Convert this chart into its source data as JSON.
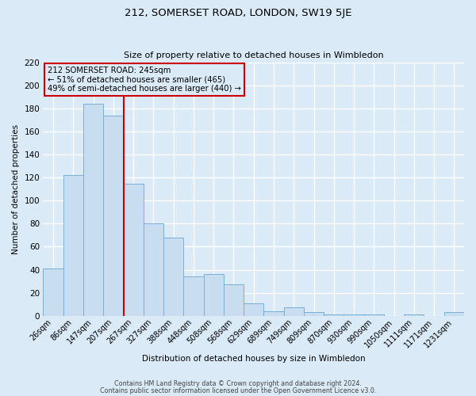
{
  "title": "212, SOMERSET ROAD, LONDON, SW19 5JE",
  "subtitle": "Size of property relative to detached houses in Wimbledon",
  "xlabel": "Distribution of detached houses by size in Wimbledon",
  "ylabel": "Number of detached properties",
  "bin_labels": [
    "26sqm",
    "86sqm",
    "147sqm",
    "207sqm",
    "267sqm",
    "327sqm",
    "388sqm",
    "448sqm",
    "508sqm",
    "568sqm",
    "629sqm",
    "689sqm",
    "749sqm",
    "809sqm",
    "870sqm",
    "930sqm",
    "990sqm",
    "1050sqm",
    "1111sqm",
    "1171sqm",
    "1231sqm"
  ],
  "bar_heights": [
    41,
    122,
    184,
    174,
    115,
    80,
    68,
    34,
    36,
    27,
    11,
    4,
    7,
    3,
    1,
    1,
    1,
    0,
    1,
    0,
    3
  ],
  "bar_color": "#c8ddf0",
  "bar_edge_color": "#7aaed6",
  "bg_color": "#daeaf7",
  "grid_color": "#ffffff",
  "annotation_box_edge_color": "#cc0000",
  "annotation_text_line1": "212 SOMERSET ROAD: 245sqm",
  "annotation_text_line2": "← 51% of detached houses are smaller (465)",
  "annotation_text_line3": "49% of semi-detached houses are larger (440) →",
  "vline_color": "#cc0000",
  "vline_x_index": 4,
  "ylim": [
    0,
    220
  ],
  "yticks": [
    0,
    20,
    40,
    60,
    80,
    100,
    120,
    140,
    160,
    180,
    200,
    220
  ],
  "footer_line1": "Contains HM Land Registry data © Crown copyright and database right 2024.",
  "footer_line2": "Contains public sector information licensed under the Open Government Licence v3.0."
}
